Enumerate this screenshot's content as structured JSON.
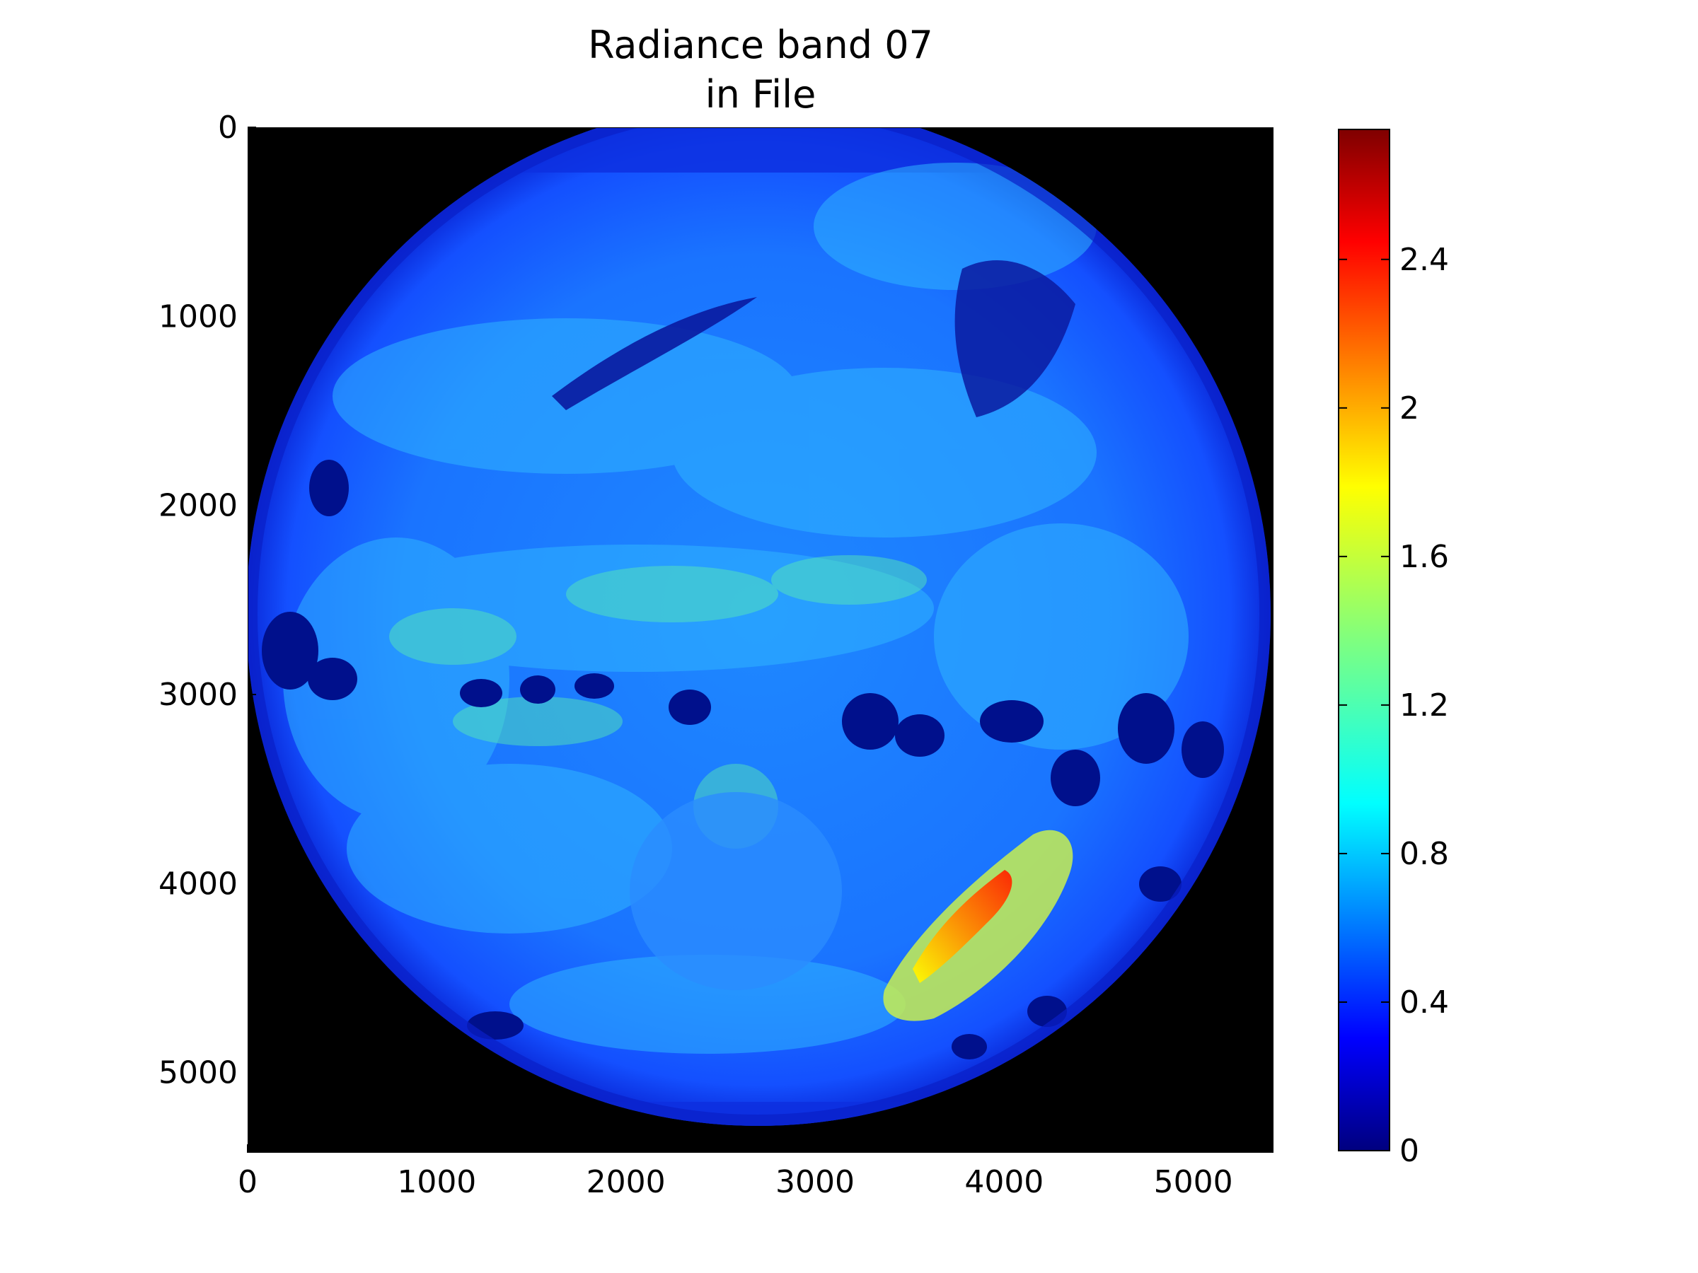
{
  "chart_data": {
    "type": "heatmap",
    "title": [
      "Radiance band 07",
      "in File"
    ],
    "xlabel": "",
    "ylabel": "",
    "x_ticks": [
      0,
      1000,
      2000,
      3000,
      4000,
      5000
    ],
    "y_ticks": [
      0,
      1000,
      2000,
      3000,
      4000,
      5000
    ],
    "xlim": [
      0,
      5424
    ],
    "ylim": [
      5424,
      0
    ],
    "y_inverted": true,
    "grid": false,
    "image_content": "full-disk satellite image of Earth, mostly blue radiance values with dark-blue cloud clusters and a red/yellow high-radiance region in the lower-right; black background outside the disk",
    "colorbar": {
      "colormap": "jet",
      "range": [
        0,
        2.75
      ],
      "ticks": [
        0,
        0.4,
        0.8,
        1.2,
        1.6,
        2,
        2.4
      ],
      "tick_labels": [
        "0",
        "0.4",
        "0.8",
        "1.2",
        "1.6",
        "2",
        "2.4"
      ]
    },
    "colors": {
      "background": "#000000",
      "ocean": "#1e64ff",
      "cloud_dark": "#00108c",
      "hot": "#ff2a00"
    }
  }
}
